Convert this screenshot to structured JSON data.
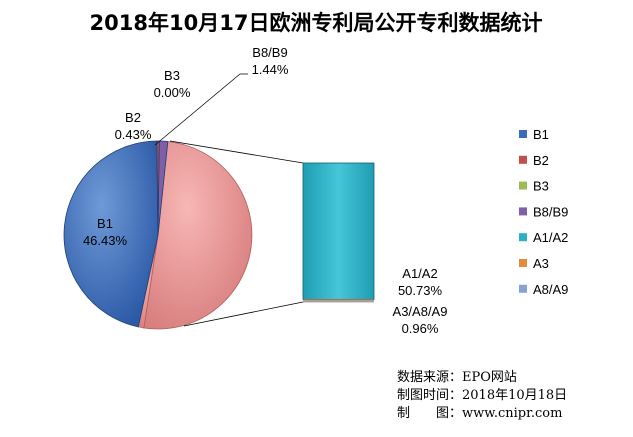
{
  "chart_data": {
    "type": "pie",
    "title": "2018年10月17日欧洲专利局公开专利数据统计",
    "slices": [
      {
        "name": "B1",
        "value": 46.43,
        "label": "46.43%",
        "color": "#3f6fbf"
      },
      {
        "name": "B2",
        "value": 0.43,
        "label": "0.43%",
        "color": "#c0504d"
      },
      {
        "name": "B3",
        "value": 0.0,
        "label": "0.00%",
        "color": "#9bbb59"
      },
      {
        "name": "B8/B9",
        "value": 1.44,
        "label": "1.44%",
        "color": "#7f5fa8"
      },
      {
        "name": "A3/A8/A9",
        "value": 0.96,
        "label": "0.96%",
        "color": "#d4a5a5"
      },
      {
        "name": "A1/A2",
        "value": 50.73,
        "label": "50.73%",
        "color": "#e59a9a"
      }
    ],
    "bar_of_pie": {
      "other_label": "A3/A8/A9",
      "other_value": 0.96,
      "other_value_label": "0.96%",
      "segments": [
        {
          "name": "A1/A2",
          "value": 50.73,
          "color": "#2ab0c4"
        },
        {
          "name": "A3",
          "value": 0.48,
          "color": "#e5893a"
        },
        {
          "name": "A8/A9",
          "value": 0.48,
          "color": "#8aa2cf"
        }
      ]
    },
    "legend": {
      "placement": "right",
      "entries": [
        {
          "name": "B1",
          "color": "#3a6cb8"
        },
        {
          "name": "B2",
          "color": "#c0504d"
        },
        {
          "name": "B3",
          "color": "#9bbb59"
        },
        {
          "name": "B8/B9",
          "color": "#7f5fa8"
        },
        {
          "name": "A1/A2",
          "color": "#2ab0c4"
        },
        {
          "name": "A3",
          "color": "#e5893a"
        },
        {
          "name": "A8/A9",
          "color": "#8aa2cf"
        }
      ]
    },
    "source_lines": [
      "数据来源：EPO网站",
      "制图时间：2018年10月18日",
      "制　　图：www.cnipr.com"
    ]
  }
}
